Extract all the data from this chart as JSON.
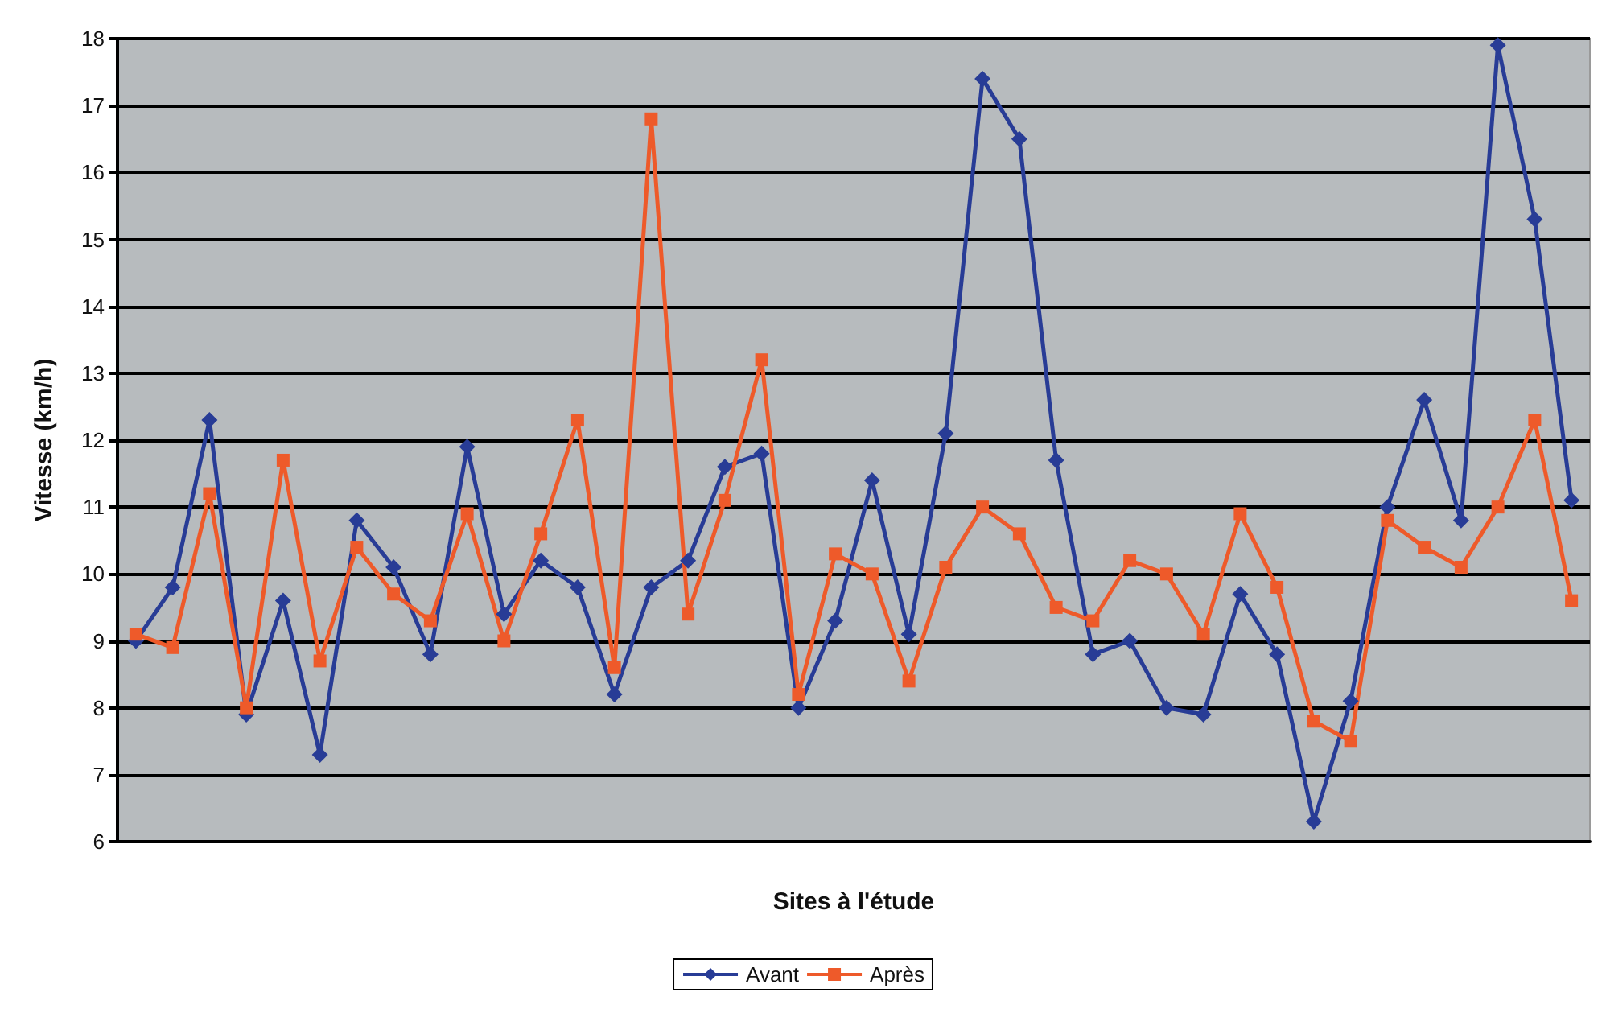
{
  "chart_data": {
    "type": "line",
    "xlabel": "Sites à l'étude",
    "ylabel": "Vitesse (km/h)",
    "categories": [
      null,
      null,
      null,
      null,
      null,
      null,
      null,
      null,
      null,
      null,
      null,
      null,
      null,
      null,
      null,
      null,
      null,
      null,
      null,
      null,
      null,
      null,
      null,
      null,
      null,
      null,
      null,
      null,
      null,
      null,
      null,
      null,
      null,
      null,
      null,
      null,
      null,
      null,
      null,
      null
    ],
    "series": [
      {
        "name": "Avant",
        "color": "#283c96",
        "marker": "diamond",
        "values": [
          9.0,
          9.8,
          12.3,
          7.9,
          9.6,
          7.3,
          10.8,
          10.1,
          8.8,
          11.9,
          9.4,
          10.2,
          9.8,
          8.2,
          9.8,
          10.2,
          11.6,
          11.8,
          8.0,
          9.3,
          11.4,
          9.1,
          12.1,
          17.4,
          16.5,
          11.7,
          8.8,
          9.0,
          8.0,
          7.9,
          9.7,
          8.8,
          6.3,
          8.1,
          11.0,
          12.6,
          10.8,
          17.9,
          15.3,
          11.1
        ]
      },
      {
        "name": "Après",
        "color": "#ee5a2a",
        "marker": "square",
        "values": [
          9.1,
          8.9,
          11.2,
          8.0,
          11.7,
          8.7,
          10.4,
          9.7,
          9.3,
          10.9,
          9.0,
          10.6,
          12.3,
          8.6,
          16.8,
          9.4,
          11.1,
          13.2,
          8.2,
          10.3,
          10.0,
          8.4,
          10.1,
          11.0,
          10.6,
          9.5,
          9.3,
          10.2,
          10.0,
          9.1,
          10.9,
          9.8,
          7.8,
          7.5,
          10.8,
          10.4,
          10.1,
          11.0,
          12.3,
          9.6
        ]
      }
    ],
    "ylim": [
      6,
      18
    ],
    "yticks": [
      6,
      7,
      8,
      9,
      10,
      11,
      12,
      13,
      14,
      15,
      16,
      17,
      18
    ],
    "grid": "y",
    "legend": "bottom",
    "line_style": "solid"
  }
}
